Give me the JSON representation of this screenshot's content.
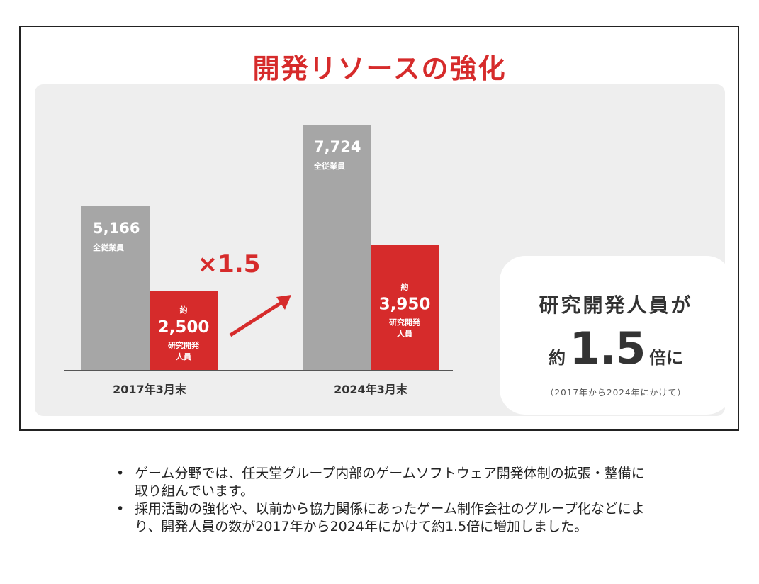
{
  "title": "開発リソースの強化",
  "chart_data": {
    "type": "bar",
    "categories": [
      "2017年3月末",
      "2024年3月末"
    ],
    "series": [
      {
        "name": "全従業員",
        "values": [
          5166,
          7724
        ],
        "labels": [
          "5,166",
          "7,724"
        ],
        "color": "#a6a6a6"
      },
      {
        "name": "研究開発人員",
        "values": [
          2500,
          3950
        ],
        "labels": [
          "2,500",
          "3,950"
        ],
        "prefix": "約",
        "color": "#d62b2b"
      }
    ],
    "growth_label": "×1.5",
    "colors": {
      "accent": "#d62b2b",
      "gray": "#a6a6a6",
      "text": "#333333"
    }
  },
  "callout": {
    "heading": "研究開発人員が",
    "prefix": "約",
    "value": "1.5",
    "suffix": "倍に",
    "note": "（2017年から2024年にかけて）"
  },
  "notes": [
    "ゲーム分野では、任天堂グループ内部のゲームソフトウェア開発体制の拡張・整備に取り組んでいます。",
    "採用活動の強化や、以前から協力関係にあったゲーム制作会社のグループ化などにより、開発人員の数が2017年から2024年にかけて約1.5倍に増加しました。"
  ],
  "bullet": "•"
}
